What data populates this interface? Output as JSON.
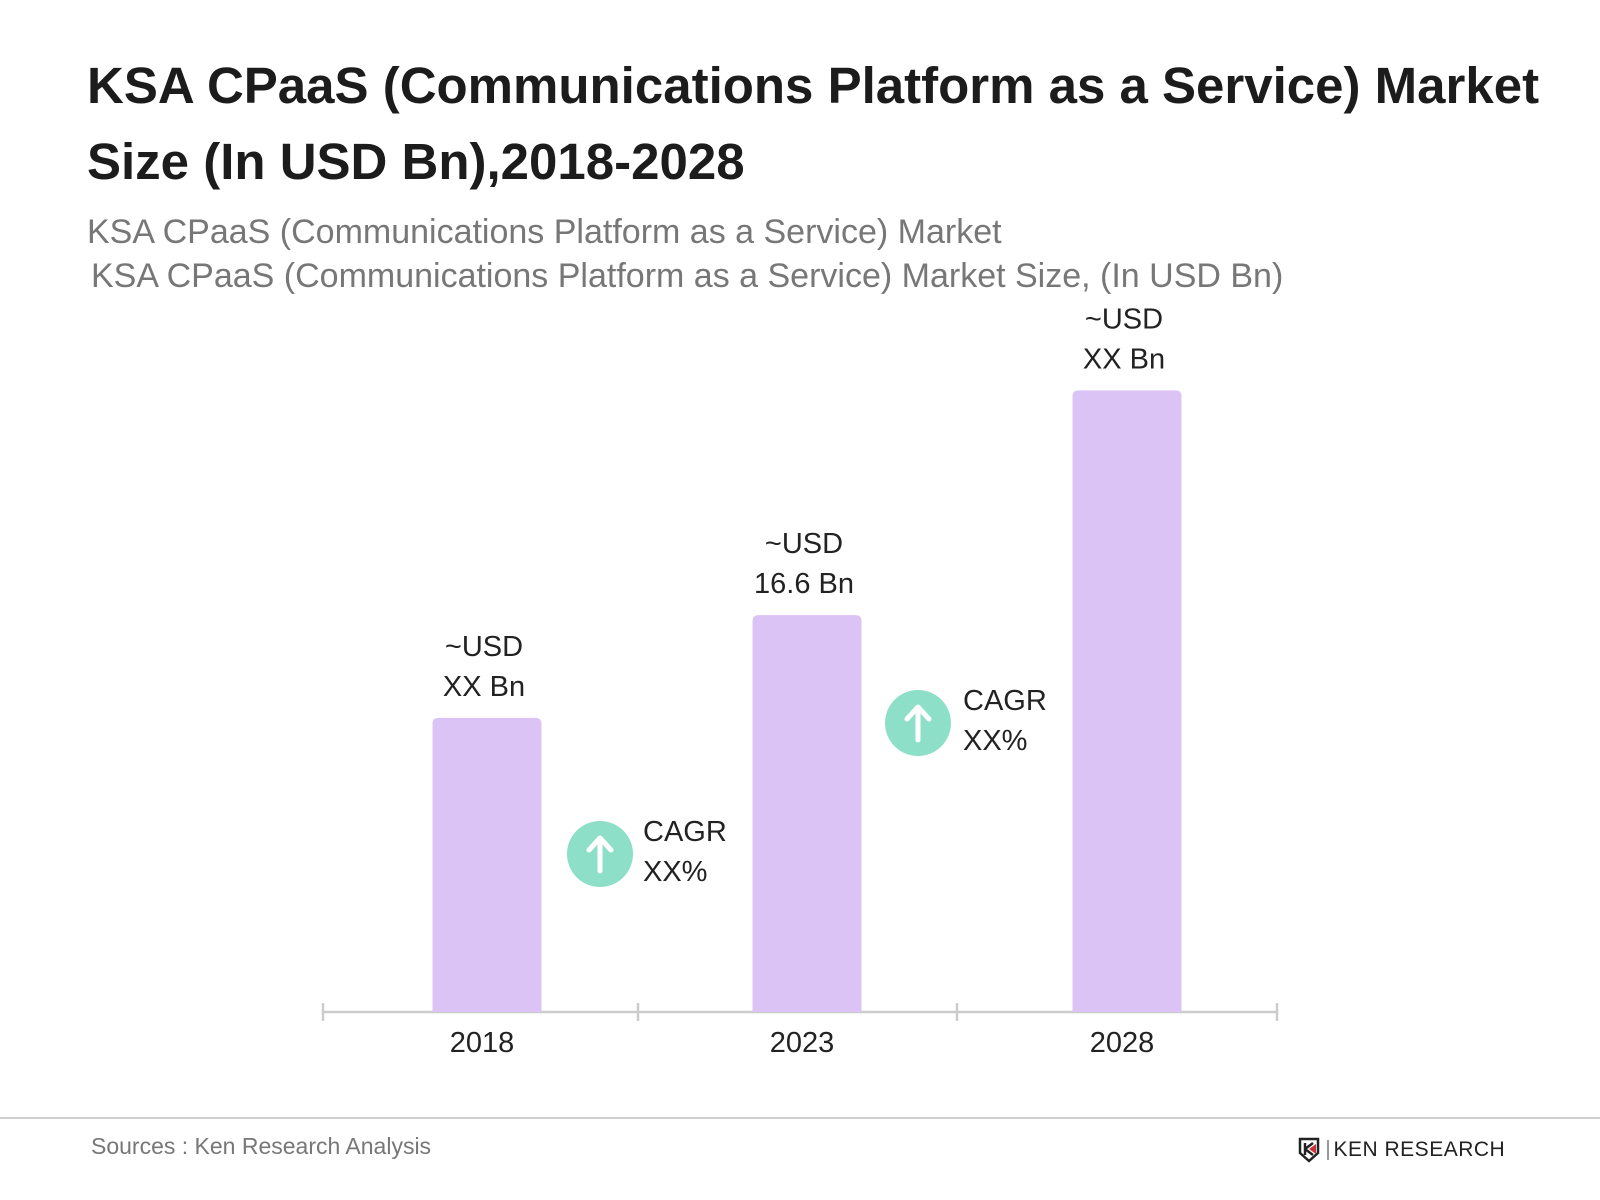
{
  "chart_data": {
    "type": "bar",
    "title": "KSA CPaaS (Communications Platform as a Service) Market Size (In USD Bn),2018-2028",
    "subtitle_lines": [
      "KSA CPaaS (Communications Platform as a Service) Market",
      "KSA CPaaS (Communications Platform as a Service) Market  Size, (In USD Bn)"
    ],
    "categories": [
      "2018",
      "2023",
      "2028"
    ],
    "values": [
      12.3,
      16.6,
      26.0
    ],
    "data_labels": [
      [
        "~USD",
        "XX Bn"
      ],
      [
        "~USD",
        "16.6 Bn"
      ],
      [
        "~USD",
        "XX Bn"
      ]
    ],
    "annotations": [
      {
        "between": [
          "2018",
          "2023"
        ],
        "icon": "arrow-up-circle-icon",
        "lines": [
          "CAGR",
          "XX%"
        ]
      },
      {
        "between": [
          "2023",
          "2028"
        ],
        "icon": "arrow-up-circle-icon",
        "lines": [
          "CAGR",
          "XX%"
        ]
      }
    ],
    "xlabel": "",
    "ylabel": "",
    "ylim": [
      0,
      26.6
    ],
    "grid": false,
    "y_axis_visible": false,
    "colors": {
      "bar": "#dcc3f5",
      "cagr_icon": "#8ddfc8",
      "axis": "#cccccc"
    }
  },
  "footer": {
    "source": "Sources : Ken Research Analysis",
    "logo_text": "KEN RESEARCH"
  }
}
